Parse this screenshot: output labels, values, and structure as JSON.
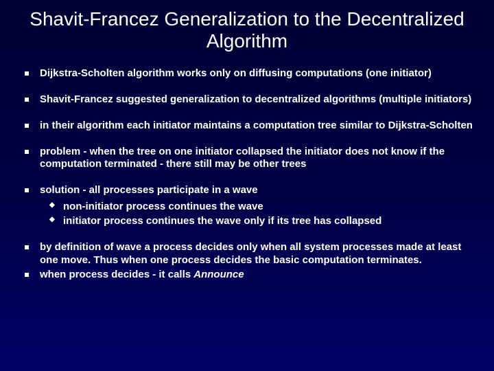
{
  "background_gradient": [
    "#000033",
    "#000044",
    "#000066"
  ],
  "text_color": "#ffffff",
  "title_fontsize": 28,
  "body_fontsize": 15,
  "font_weight": "bold",
  "bullet_square_color": "#ffffff",
  "title": "Shavit-Francez Generalization to the Decentralized Algorithm",
  "bullets": {
    "b0": "Dijkstra-Scholten algorithm works only on diffusing computations (one initiator)",
    "b1": "Shavit-Francez suggested generalization to decentralized algorithms (multiple initiators)",
    "b2": "in their algorithm each initiator maintains a computation tree similar to Dijkstra-Scholten",
    "b3": "problem - when the tree on one initiator collapsed the initiator does not know if the computation terminated - there still may be other trees",
    "b4": "solution - all processes participate in a wave",
    "b4_sub0": "non-initiator process continues the wave",
    "b4_sub1": "initiator process continues the wave only if its tree has collapsed",
    "b5": "by definition of wave a process decides only when all system processes made at least one move. Thus when one process decides the basic computation terminates.",
    "b6_prefix": "when process decides - it calls ",
    "b6_italic": "Announce"
  }
}
